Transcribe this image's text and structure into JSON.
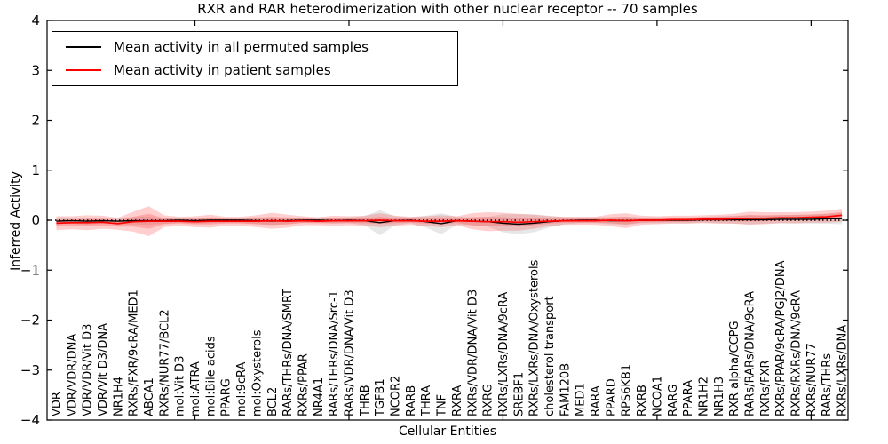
{
  "window": {
    "title": "RXR and RAR heterodimerization with other nuclear receptor -- 70 samples"
  },
  "legend": {
    "entries": [
      {
        "label": "Mean activity in all permuted samples",
        "color": "#000000"
      },
      {
        "label": "Mean activity in patient samples",
        "color": "#ff0000"
      }
    ]
  },
  "axes": {
    "ylabel": "Inferred Activity",
    "xlabel": "Cellular Entities",
    "ytick_labels": [
      "4",
      "3",
      "2",
      "1",
      "0",
      "−1",
      "−2",
      "−3",
      "−4"
    ]
  },
  "chart_data": {
    "type": "line",
    "title": "RXR and RAR heterodimerization with other nuclear receptor -- 70 samples",
    "xlabel": "Cellular Entities",
    "ylabel": "Inferred Activity",
    "ylim": [
      -4,
      4
    ],
    "yticks": [
      4,
      3,
      2,
      1,
      0,
      -1,
      -2,
      -3,
      -4
    ],
    "xlim": [
      0.4,
      52.4
    ],
    "xtick_positions": [
      10,
      20,
      30,
      40,
      50
    ],
    "grid": false,
    "legend_position": "upper left",
    "zero_reference_line": 0,
    "inner_band_ratio": 0.5,
    "colors": {
      "permuted_line": "#000000",
      "patient_line": "#ff0000",
      "permuted_band": "rgba(120,120,120,0.18)",
      "patient_band": "rgba(255,30,30,0.22)"
    },
    "categories": [
      "VDR",
      "VDR/VDR/DNA",
      "VDR/VDR/Vit D3",
      "VDR/Vit D3/DNA",
      "NR1H4",
      "RXRs/FXR/9cRA/MED1",
      "ABCA1",
      "RXRs/NUR77/BCL2",
      "mol:Vit D3",
      "mol:ATRA",
      "mol:Bile acids",
      "PPARG",
      "mol:9cRA",
      "mol:Oxysterols",
      "BCL2",
      "RARs/THRs/DNA/SMRT",
      "RXRs/PPAR",
      "NR4A1",
      "RARs/THRs/DNA/Src-1",
      "RARs/VDR/DNA/Vit D3",
      "THRB",
      "TGFB1",
      "NCOR2",
      "RARB",
      "THRA",
      "TNF",
      "RXRA",
      "RXRs/VDR/DNA/Vit D3",
      "RXRG",
      "RXRs/LXRs/DNA/9cRA",
      "SREBF1",
      "RXRs/LXRs/DNA/Oxysterols",
      "cholesterol transport",
      "FAM120B",
      "MED1",
      "RARA",
      "PPARD",
      "RPS6KB1",
      "RXRB",
      "NCOA1",
      "RARG",
      "PPARA",
      "NR1H2",
      "NR1H3",
      "RXR alpha/CCPG",
      "RARs/RARs/DNA/9cRA",
      "RXRs/FXR",
      "RXRs/PPAR/9cRA/PGJ2/DNA",
      "RXRs/RXRs/DNA/9cRA",
      "RXRs/NUR77",
      "RARs/THRs",
      "RXRs/LXRs/DNA"
    ],
    "series": [
      {
        "name": "Mean activity in all permuted samples",
        "values": [
          -0.02,
          -0.01,
          -0.02,
          -0.01,
          -0.02,
          -0.01,
          -0.01,
          -0.01,
          0.0,
          -0.01,
          0.0,
          0.0,
          0.0,
          -0.01,
          -0.02,
          -0.01,
          0.0,
          0.0,
          -0.01,
          0.0,
          -0.01,
          -0.05,
          -0.01,
          0.0,
          -0.03,
          -0.07,
          -0.01,
          -0.02,
          -0.03,
          -0.06,
          -0.08,
          -0.06,
          -0.03,
          -0.01,
          0.0,
          0.0,
          -0.01,
          -0.01,
          0.0,
          0.0,
          0.0,
          0.0,
          0.01,
          0.01,
          0.01,
          0.01,
          0.01,
          0.02,
          0.02,
          0.02,
          0.03,
          0.03
        ],
        "band_halfwidth": [
          0.06,
          0.06,
          0.07,
          0.06,
          0.06,
          0.08,
          0.08,
          0.06,
          0.05,
          0.06,
          0.06,
          0.05,
          0.05,
          0.07,
          0.08,
          0.07,
          0.05,
          0.05,
          0.06,
          0.06,
          0.09,
          0.25,
          0.09,
          0.06,
          0.12,
          0.21,
          0.08,
          0.08,
          0.1,
          0.18,
          0.2,
          0.18,
          0.12,
          0.07,
          0.06,
          0.06,
          0.07,
          0.08,
          0.06,
          0.06,
          0.06,
          0.06,
          0.06,
          0.07,
          0.08,
          0.09,
          0.08,
          0.08,
          0.09,
          0.09,
          0.1,
          0.11
        ]
      },
      {
        "name": "Mean activity in patient samples",
        "values": [
          -0.06,
          -0.05,
          -0.05,
          -0.04,
          -0.07,
          -0.03,
          -0.02,
          -0.02,
          -0.02,
          -0.03,
          -0.02,
          -0.02,
          -0.02,
          -0.02,
          -0.01,
          -0.02,
          -0.01,
          -0.02,
          -0.01,
          -0.01,
          -0.01,
          0.0,
          -0.01,
          -0.01,
          -0.02,
          -0.02,
          -0.01,
          -0.02,
          -0.03,
          -0.03,
          -0.04,
          -0.03,
          -0.02,
          -0.01,
          -0.01,
          -0.01,
          0.0,
          -0.01,
          0.0,
          0.0,
          0.01,
          0.01,
          0.02,
          0.02,
          0.03,
          0.04,
          0.04,
          0.05,
          0.05,
          0.06,
          0.07,
          0.1
        ],
        "band_halfwidth": [
          0.14,
          0.13,
          0.15,
          0.13,
          0.12,
          0.2,
          0.3,
          0.12,
          0.09,
          0.11,
          0.13,
          0.09,
          0.09,
          0.12,
          0.16,
          0.13,
          0.09,
          0.08,
          0.1,
          0.09,
          0.1,
          0.14,
          0.1,
          0.08,
          0.1,
          0.12,
          0.09,
          0.16,
          0.19,
          0.18,
          0.17,
          0.14,
          0.1,
          0.08,
          0.08,
          0.08,
          0.12,
          0.15,
          0.09,
          0.08,
          0.08,
          0.08,
          0.08,
          0.09,
          0.1,
          0.13,
          0.12,
          0.11,
          0.11,
          0.11,
          0.12,
          0.13
        ]
      }
    ]
  }
}
